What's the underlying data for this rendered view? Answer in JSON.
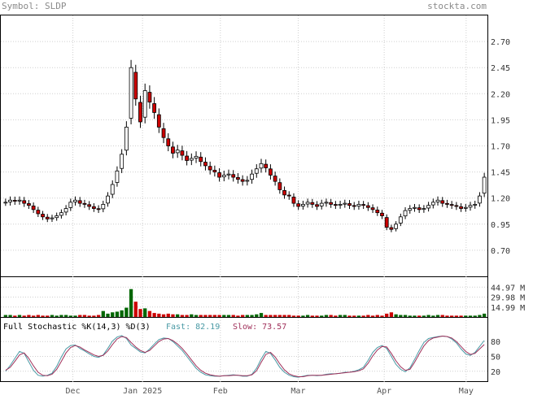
{
  "header": {
    "symbol": "Symbol: SLDP",
    "site": "stockta.com"
  },
  "colors": {
    "up": "#ffffff",
    "down": "#cc0000",
    "vol_up": "#006600",
    "vol_down": "#cc0000",
    "grid": "#cfcfcf",
    "fast": "#4a9aa5",
    "slow": "#a0305a"
  },
  "chart_data": [
    {
      "type": "candlestick",
      "title": "",
      "ylim": [
        0.45,
        2.95
      ],
      "y_ticks": [
        "2.70",
        "2.45",
        "2.20",
        "1.95",
        "1.70",
        "1.45",
        "1.20",
        "0.95",
        "0.70"
      ],
      "x_labels": [
        "Dec",
        "Jan 2025",
        "Feb",
        "Mar",
        "Apr",
        "May"
      ],
      "grid": true,
      "series_close": [
        1.16,
        1.18,
        1.17,
        1.18,
        1.15,
        1.13,
        1.09,
        1.05,
        1.02,
        1.0,
        1.01,
        1.03,
        1.06,
        1.1,
        1.16,
        1.18,
        1.15,
        1.14,
        1.12,
        1.1,
        1.09,
        1.14,
        1.22,
        1.33,
        1.46,
        1.62,
        1.88,
        2.45,
        2.15,
        1.93,
        2.23,
        2.12,
        2.02,
        1.88,
        1.78,
        1.7,
        1.63,
        1.66,
        1.61,
        1.56,
        1.58,
        1.6,
        1.55,
        1.51,
        1.47,
        1.45,
        1.4,
        1.42,
        1.43,
        1.4,
        1.38,
        1.36,
        1.37,
        1.43,
        1.48,
        1.53,
        1.49,
        1.42,
        1.36,
        1.28,
        1.23,
        1.22,
        1.15,
        1.12,
        1.14,
        1.16,
        1.14,
        1.12,
        1.15,
        1.16,
        1.14,
        1.13,
        1.14,
        1.15,
        1.13,
        1.12,
        1.14,
        1.13,
        1.11,
        1.09,
        1.06,
        1.03,
        0.92,
        0.9,
        0.95,
        1.02,
        1.08,
        1.1,
        1.11,
        1.09,
        1.1,
        1.13,
        1.16,
        1.18,
        1.15,
        1.14,
        1.13,
        1.12,
        1.1,
        1.11,
        1.13,
        1.14,
        1.22,
        1.4
      ]
    },
    {
      "type": "bar",
      "title": "",
      "y_ticks": [
        "44.97 M",
        "29.98 M",
        "14.99 M"
      ],
      "ylim": [
        0,
        60
      ],
      "values": [
        3,
        3,
        2,
        3,
        2,
        3,
        2,
        3,
        2,
        2,
        3,
        2,
        3,
        3,
        2,
        2,
        3,
        3,
        2,
        2,
        3,
        9,
        5,
        7,
        8,
        10,
        14,
        42,
        23,
        12,
        13,
        9,
        6,
        5,
        4,
        5,
        4,
        4,
        3,
        3,
        4,
        3,
        3,
        3,
        3,
        3,
        3,
        3,
        3,
        3,
        2,
        3,
        3,
        3,
        4,
        6,
        3,
        3,
        3,
        3,
        3,
        3,
        2,
        2,
        2,
        3,
        2,
        2,
        2,
        3,
        3,
        2,
        3,
        3,
        2,
        2,
        2,
        2,
        3,
        2,
        3,
        2,
        5,
        7,
        4,
        3,
        3,
        2,
        2,
        2,
        2,
        3,
        2,
        3,
        3,
        2,
        2,
        2,
        2,
        2,
        2,
        2,
        3,
        5
      ]
    },
    {
      "type": "line",
      "title": "Full Stochastic %K(14,3) %D(3)",
      "legend": {
        "fast_label": "Fast: 82.19",
        "slow_label": "Slow: 73.57"
      },
      "y_ticks": [
        "80",
        "50",
        "20"
      ],
      "ylim": [
        0,
        100
      ],
      "series": [
        {
          "name": "Fast",
          "values": [
            20,
            32,
            46,
            60,
            56,
            39,
            22,
            12,
            10,
            12,
            16,
            30,
            49,
            65,
            72,
            73,
            66,
            61,
            55,
            50,
            48,
            53,
            66,
            81,
            89,
            92,
            86,
            73,
            66,
            59,
            57,
            65,
            75,
            84,
            87,
            86,
            80,
            71,
            62,
            50,
            38,
            26,
            18,
            13,
            11,
            10,
            10,
            11,
            12,
            13,
            12,
            10,
            10,
            14,
            26,
            45,
            60,
            56,
            43,
            28,
            18,
            12,
            9,
            8,
            10,
            12,
            12,
            11,
            12,
            14,
            15,
            15,
            16,
            18,
            18,
            20,
            23,
            28,
            42,
            58,
            68,
            72,
            66,
            50,
            34,
            24,
            19,
            27,
            44,
            62,
            78,
            86,
            88,
            90,
            91,
            90,
            85,
            77,
            65,
            55,
            52,
            58,
            70,
            82
          ]
        },
        {
          "name": "Slow",
          "values": [
            22,
            28,
            40,
            53,
            57,
            46,
            31,
            18,
            12,
            11,
            14,
            24,
            40,
            57,
            68,
            72,
            69,
            63,
            58,
            53,
            50,
            52,
            61,
            74,
            85,
            90,
            88,
            78,
            69,
            62,
            58,
            62,
            71,
            80,
            85,
            86,
            82,
            75,
            66,
            55,
            43,
            31,
            22,
            16,
            13,
            11,
            10,
            11,
            11,
            12,
            12,
            11,
            11,
            13,
            21,
            38,
            54,
            58,
            49,
            35,
            23,
            15,
            11,
            9,
            9,
            11,
            12,
            12,
            12,
            13,
            14,
            15,
            16,
            17,
            18,
            19,
            21,
            25,
            36,
            51,
            63,
            70,
            69,
            56,
            41,
            29,
            22,
            24,
            38,
            55,
            71,
            82,
            87,
            89,
            91,
            90,
            87,
            80,
            70,
            60,
            54,
            56,
            65,
            74
          ]
        }
      ]
    }
  ]
}
